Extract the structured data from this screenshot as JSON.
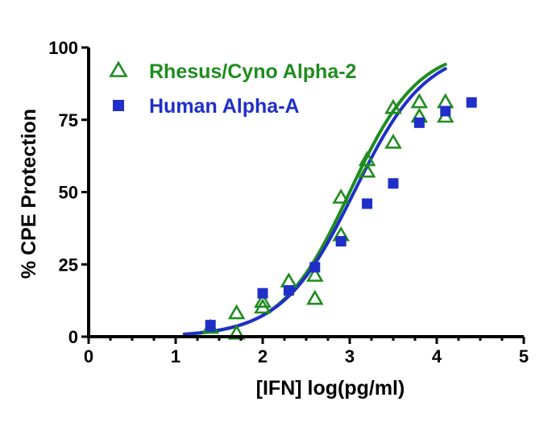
{
  "chart_data": {
    "type": "scatter",
    "xlabel": "[IFN] log(pg/ml)",
    "ylabel": "% CPE Protection",
    "xlim": [
      0,
      5
    ],
    "ylim": [
      0,
      100
    ],
    "x_ticks": [
      0,
      1,
      2,
      3,
      4,
      5
    ],
    "y_ticks": [
      0,
      25,
      50,
      75,
      100
    ],
    "x_tick_labels": [
      "0",
      "1",
      "2",
      "3",
      "4",
      "5"
    ],
    "y_tick_labels": [
      "0",
      "25",
      "50",
      "75",
      "100"
    ],
    "grid": false,
    "legend_position": "top-left",
    "series": [
      {
        "name": "Rhesus/Cyno Alpha-2",
        "marker": "open-triangle",
        "color": "#1f8c1f",
        "points": [
          {
            "x": 1.4,
            "y": 3
          },
          {
            "x": 1.7,
            "y": 1
          },
          {
            "x": 1.7,
            "y": 8
          },
          {
            "x": 2.0,
            "y": 10
          },
          {
            "x": 2.0,
            "y": 12
          },
          {
            "x": 2.3,
            "y": 19
          },
          {
            "x": 2.6,
            "y": 13
          },
          {
            "x": 2.6,
            "y": 21
          },
          {
            "x": 2.9,
            "y": 35
          },
          {
            "x": 2.9,
            "y": 48
          },
          {
            "x": 3.2,
            "y": 57
          },
          {
            "x": 3.2,
            "y": 61
          },
          {
            "x": 3.5,
            "y": 67
          },
          {
            "x": 3.5,
            "y": 79
          },
          {
            "x": 3.8,
            "y": 76
          },
          {
            "x": 3.8,
            "y": 81
          },
          {
            "x": 4.1,
            "y": 76
          },
          {
            "x": 4.1,
            "y": 81
          }
        ],
        "fit_curve": {
          "type": "sigmoid",
          "bottom": 0,
          "top": 100,
          "logEC50": 3.0,
          "hill": 1.1,
          "x_range": [
            1.1,
            4.1
          ]
        }
      },
      {
        "name": "Human Alpha-A",
        "marker": "filled-square",
        "color": "#1f2fc8",
        "points": [
          {
            "x": 1.4,
            "y": 4
          },
          {
            "x": 2.0,
            "y": 15
          },
          {
            "x": 2.3,
            "y": 16
          },
          {
            "x": 2.6,
            "y": 24
          },
          {
            "x": 2.9,
            "y": 33
          },
          {
            "x": 3.2,
            "y": 46
          },
          {
            "x": 3.5,
            "y": 53
          },
          {
            "x": 3.8,
            "y": 74
          },
          {
            "x": 4.1,
            "y": 78
          },
          {
            "x": 4.4,
            "y": 81
          }
        ],
        "fit_curve": {
          "type": "sigmoid",
          "bottom": 0,
          "top": 100,
          "logEC50": 3.05,
          "hill": 1.05,
          "x_range": [
            1.1,
            4.1
          ]
        }
      }
    ]
  }
}
